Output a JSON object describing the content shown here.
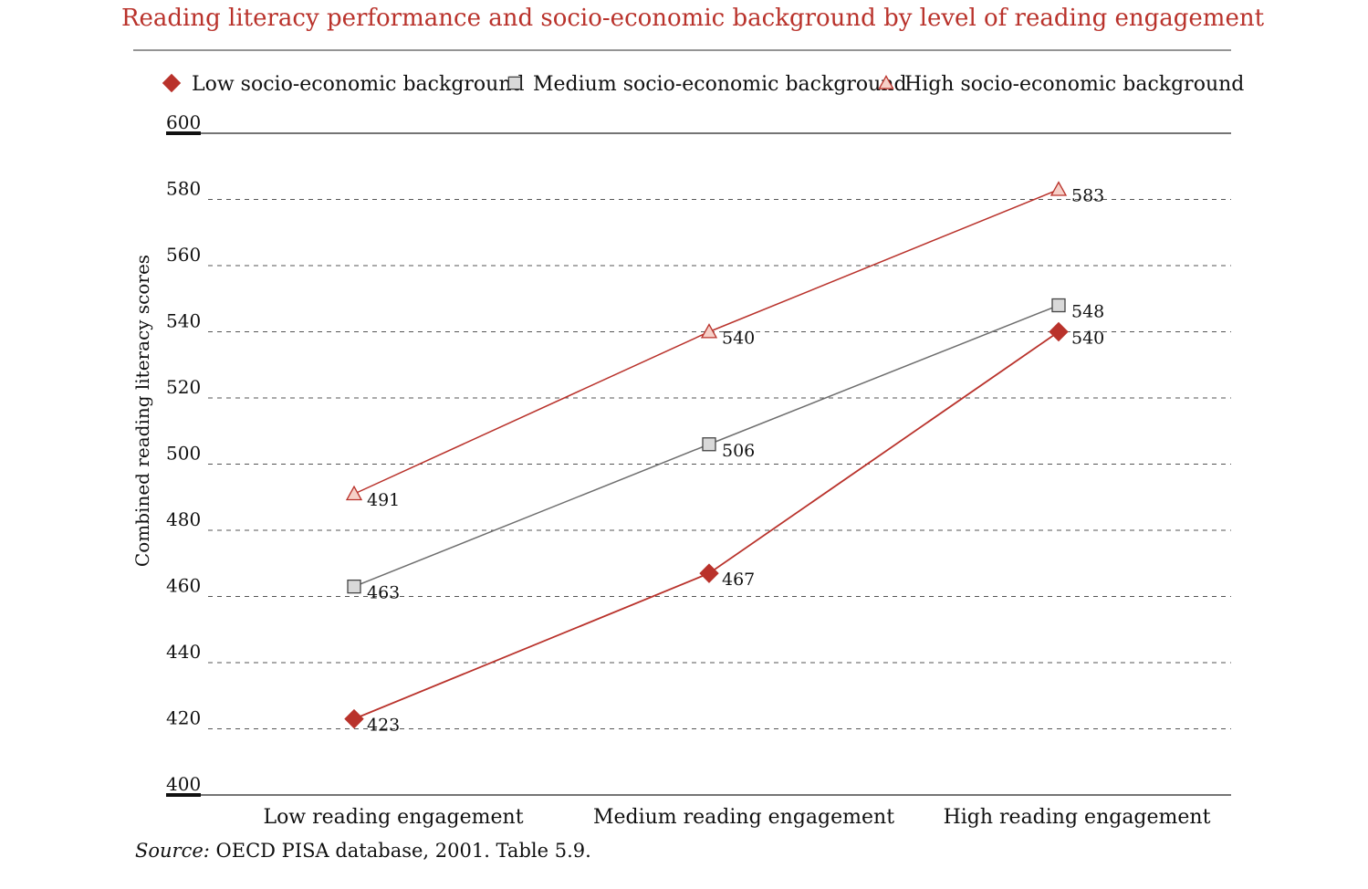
{
  "chart_data": {
    "type": "line",
    "title": "Reading literacy performance and socio-economic background by level of reading engagement",
    "ylabel": "Combined reading literacy scores",
    "xlabel": "",
    "ylim": [
      400,
      600
    ],
    "yticks": [
      400,
      420,
      440,
      460,
      480,
      500,
      520,
      540,
      560,
      580,
      600
    ],
    "grid": true,
    "legend_position": "top",
    "categories": [
      "Low reading engagement",
      "Medium reading engagement",
      "High reading engagement"
    ],
    "series": [
      {
        "name": "Low socio-economic background",
        "values": [
          423,
          467,
          540
        ],
        "color": "#b9322b",
        "marker": "diamond"
      },
      {
        "name": "Medium socio-economic background",
        "values": [
          463,
          506,
          548
        ],
        "color": "#6e6e6e",
        "marker": "square"
      },
      {
        "name": "High socio-economic background",
        "values": [
          491,
          540,
          583
        ],
        "color": "#b9322b",
        "marker": "triangle"
      }
    ]
  },
  "source": {
    "label": "Source:",
    "text": "OECD PISA database, 2001. Table 5.9."
  }
}
